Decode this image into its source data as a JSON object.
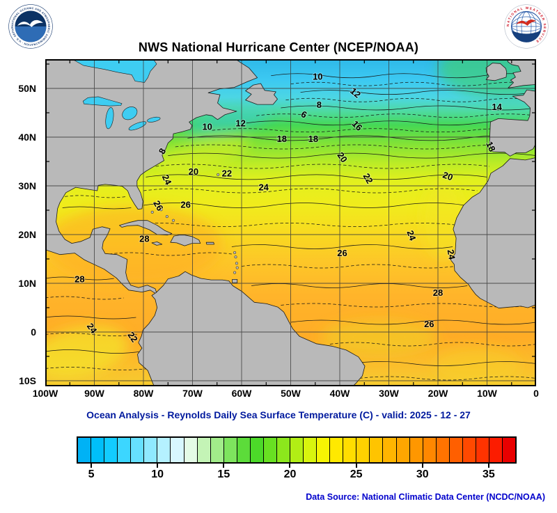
{
  "header": {
    "title": "NWS National Hurricane Center (NCEP/NOAA)",
    "noaa_ring_text": "NATIONAL OCEANIC AND ATMOSPHERIC ADMINISTRATION · U.S. DEPARTMENT OF COMMERCE",
    "nws_ring_text": "NATIONAL WEATHER SERVICE"
  },
  "map": {
    "lat_ticks": [
      {
        "label": "50N",
        "lat": 50
      },
      {
        "label": "40N",
        "lat": 40
      },
      {
        "label": "30N",
        "lat": 30
      },
      {
        "label": "20N",
        "lat": 20
      },
      {
        "label": "10N",
        "lat": 10
      },
      {
        "label": "0",
        "lat": 0
      },
      {
        "label": "10S",
        "lat": -10
      }
    ],
    "lon_ticks": [
      {
        "label": "100W",
        "lon": -100
      },
      {
        "label": "90W",
        "lon": -90
      },
      {
        "label": "80W",
        "lon": -80
      },
      {
        "label": "70W",
        "lon": -70
      },
      {
        "label": "60W",
        "lon": -60
      },
      {
        "label": "50W",
        "lon": -50
      },
      {
        "label": "40W",
        "lon": -40
      },
      {
        "label": "30W",
        "lon": -30
      },
      {
        "label": "20W",
        "lon": -20
      },
      {
        "label": "10W",
        "lon": -10
      },
      {
        "label": "0",
        "lon": 0
      }
    ],
    "contour_labels": [
      {
        "t": "10",
        "lon": -44.5,
        "lat": 51.8,
        "rot": 0
      },
      {
        "t": "12",
        "lon": -37.2,
        "lat": 48.6,
        "rot": 40
      },
      {
        "t": "8",
        "lon": -44.2,
        "lat": 46.0,
        "rot": 0
      },
      {
        "t": "6",
        "lon": -47.6,
        "lat": 44.1,
        "rot": 30
      },
      {
        "t": "14",
        "lon": -8.0,
        "lat": 45.6,
        "rot": 0
      },
      {
        "t": "16",
        "lon": -36.9,
        "lat": 41.9,
        "rot": 45
      },
      {
        "t": "10",
        "lon": -67.0,
        "lat": 41.5,
        "rot": 0
      },
      {
        "t": "12",
        "lon": -60.2,
        "lat": 42.2,
        "rot": 0
      },
      {
        "t": "18",
        "lon": -51.8,
        "lat": 39.0,
        "rot": 0
      },
      {
        "t": "18",
        "lon": -45.4,
        "lat": 39.0,
        "rot": 0
      },
      {
        "t": "8",
        "lon": -75.6,
        "lat": 36.8,
        "rot": -60
      },
      {
        "t": "18",
        "lon": -9.8,
        "lat": 37.8,
        "rot": 65
      },
      {
        "t": "20",
        "lon": -40.0,
        "lat": 35.5,
        "rot": 55
      },
      {
        "t": "22",
        "lon": -34.8,
        "lat": 31.2,
        "rot": 60
      },
      {
        "t": "20",
        "lon": -69.8,
        "lat": 32.3,
        "rot": 0
      },
      {
        "t": "22",
        "lon": -63.0,
        "lat": 31.9,
        "rot": 0
      },
      {
        "t": "24",
        "lon": -75.8,
        "lat": 31.0,
        "rot": 65
      },
      {
        "t": "24",
        "lon": -55.5,
        "lat": 29.1,
        "rot": 0
      },
      {
        "t": "20",
        "lon": -18.2,
        "lat": 31.4,
        "rot": 20
      },
      {
        "t": "26",
        "lon": -71.4,
        "lat": 25.5,
        "rot": 0
      },
      {
        "t": "26",
        "lon": -77.5,
        "lat": 25.6,
        "rot": 60
      },
      {
        "t": "28",
        "lon": -79.8,
        "lat": 18.5,
        "rot": 0
      },
      {
        "t": "24",
        "lon": -26.0,
        "lat": 19.6,
        "rot": 70
      },
      {
        "t": "24",
        "lon": -17.9,
        "lat": 15.8,
        "rot": 80
      },
      {
        "t": "26",
        "lon": -39.5,
        "lat": 15.6,
        "rot": 0
      },
      {
        "t": "28",
        "lon": -93.0,
        "lat": 10.2,
        "rot": 0
      },
      {
        "t": "28",
        "lon": -20.0,
        "lat": 7.4,
        "rot": 0
      },
      {
        "t": "26",
        "lon": -21.8,
        "lat": 1.0,
        "rot": 0
      },
      {
        "t": "24",
        "lon": -91.0,
        "lat": 0.4,
        "rot": 55
      },
      {
        "t": "22",
        "lon": -82.7,
        "lat": -1.4,
        "rot": 55
      }
    ]
  },
  "caption": "Ocean Analysis - Reynolds Daily Sea Surface Temperature (C) - valid: 2025 - 12 - 27",
  "colorbar": {
    "range": [
      4,
      37
    ],
    "tick_values": [
      5,
      10,
      15,
      20,
      25,
      30,
      35
    ],
    "colors": [
      "#00b2f5",
      "#00bffa",
      "#12ccff",
      "#3cd6ff",
      "#66e0ff",
      "#8fe9ff",
      "#b5f1ff",
      "#d8f7ff",
      "#e4fbe6",
      "#c4f4b6",
      "#a2ec8a",
      "#7ee45e",
      "#5cdc3a",
      "#4cd929",
      "#68e022",
      "#8ce71c",
      "#b2ee15",
      "#d8f40e",
      "#f6f403",
      "#ffe900",
      "#ffdd00",
      "#ffd100",
      "#ffc400",
      "#ffb500",
      "#ffa600",
      "#ff9700",
      "#ff8700",
      "#ff7300",
      "#ff5f00",
      "#ff4900",
      "#ff3300",
      "#fc1c00",
      "#e90000"
    ]
  },
  "footer": "Data Source: National Climatic Data Center (NCDC/NOAA)"
}
